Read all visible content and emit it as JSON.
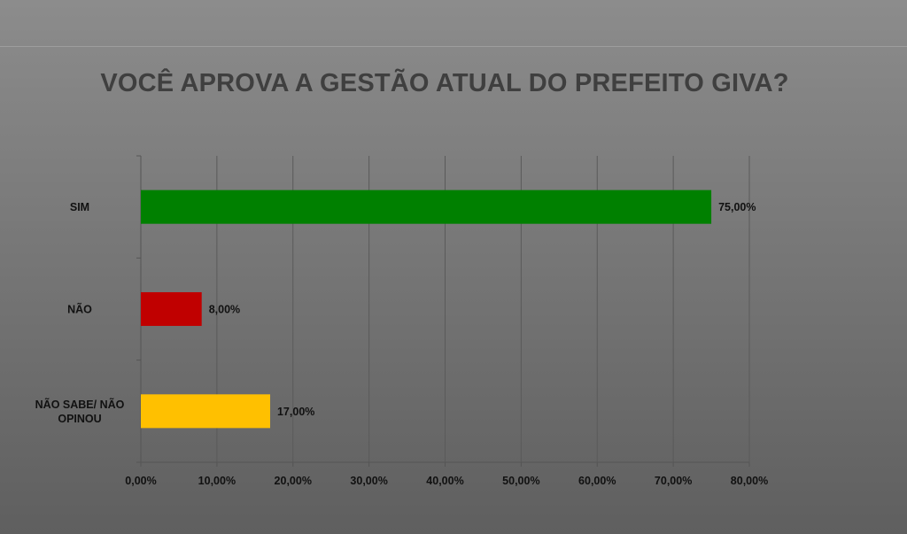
{
  "chart_data": {
    "type": "bar",
    "orientation": "horizontal",
    "title": "VOCÊ APROVA A GESTÃO ATUAL DO PREFEITO GIVA?",
    "categories": [
      "SIM",
      "NÃO",
      "NÃO SABE/ NÃO OPINOU"
    ],
    "category_lines": [
      [
        "SIM"
      ],
      [
        "NÃO"
      ],
      [
        "NÃO SABE/ NÃO",
        "OPINOU"
      ]
    ],
    "values": [
      75,
      8,
      17
    ],
    "data_labels": [
      "75,00%",
      "8,00%",
      "17,00%"
    ],
    "bar_colors": [
      "#008000",
      "#c00000",
      "#ffc000"
    ],
    "xlim": [
      0,
      80
    ],
    "x_ticks": [
      0,
      10,
      20,
      30,
      40,
      50,
      60,
      70,
      80
    ],
    "x_tick_labels": [
      "0,00%",
      "10,00%",
      "20,00%",
      "30,00%",
      "40,00%",
      "50,00%",
      "60,00%",
      "70,00%",
      "80,00%"
    ],
    "xlabel": "",
    "ylabel": "",
    "grid": true,
    "legend": false
  }
}
